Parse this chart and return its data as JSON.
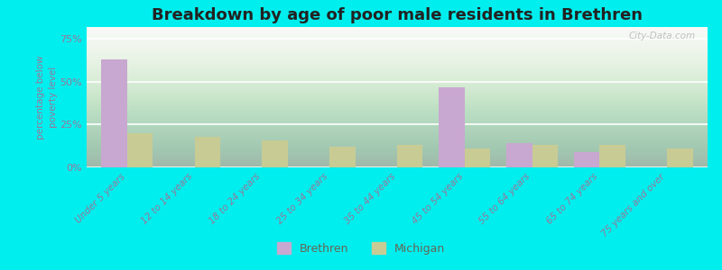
{
  "title": "Breakdown by age of poor male residents in Brethren",
  "categories": [
    "Under 5 years",
    "12 to 14 years",
    "18 to 24 years",
    "25 to 34 years",
    "35 to 44 years",
    "45 to 54 years",
    "55 to 64 years",
    "65 to 74 years",
    "75 years and over"
  ],
  "brethren_values": [
    63,
    0,
    0,
    0,
    0,
    47,
    14,
    9,
    0
  ],
  "michigan_values": [
    20,
    18,
    16,
    12,
    13,
    11,
    13,
    13,
    11
  ],
  "brethren_color": "#c8a8d0",
  "michigan_color": "#c8cc94",
  "figure_bg_color": "#00eeee",
  "plot_bg_color_top": "#f8f8f8",
  "plot_bg_color_bottom": "#dde8cc",
  "ylabel": "percentage below\npoverty level",
  "ylim": [
    0,
    82
  ],
  "yticks": [
    0,
    25,
    50,
    75
  ],
  "ytick_labels": [
    "0%",
    "25%",
    "50%",
    "75%"
  ],
  "bar_width": 0.38,
  "title_fontsize": 13,
  "watermark": "City-Data.com",
  "tick_color": "#997799",
  "label_color": "#997799"
}
